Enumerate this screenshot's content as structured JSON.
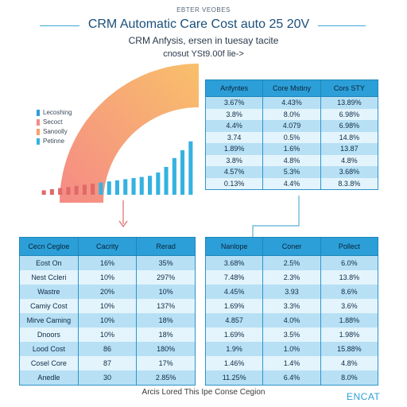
{
  "header": {
    "tag": "EBTER VEOBES",
    "title": "CRM Automatic Care Cost auto 25 20V",
    "subtitle": "CRM Anfysis, ersen in tuesay tacite",
    "subtitle2": "cnosut YSt9.00f lie->"
  },
  "colors": {
    "accent": "#2c9fd8",
    "header_fill": "#2c9fd8",
    "row_dark": "#b7e0f4",
    "row_light": "#e3f4fc",
    "arc_start": "#f58a86",
    "arc_end": "#f8c06a",
    "bar_fill": "#35b2e0",
    "connector": "#e06a6a",
    "connector_blue": "#5aaed6"
  },
  "chart_data": {
    "type": "bar",
    "title": "",
    "legend": {
      "placement": "top-left",
      "entries": [
        {
          "name": "Lecoshing",
          "color": "#2c9fd8"
        },
        {
          "name": "Secoct",
          "color": "#f58a86"
        },
        {
          "name": "Sanoolly",
          "color": "#f8a06a"
        },
        {
          "name": "Petinne",
          "color": "#35b2e0"
        }
      ]
    },
    "series": [
      {
        "name": "Petinne",
        "values": [
          4,
          5,
          6,
          7,
          8,
          9,
          10,
          11,
          12,
          13,
          14,
          15,
          16,
          17,
          20,
          25,
          33,
          40,
          48
        ]
      }
    ],
    "ylim": [
      0,
      100
    ],
    "arc": {
      "from": 5,
      "to": 100
    }
  },
  "table_top": {
    "headers": [
      "Anfyntes",
      "Core Mstiny",
      "Cors STY"
    ],
    "rows": [
      [
        "3.67%",
        "4.43%",
        "13.89%"
      ],
      [
        "3.8%",
        "8.0%",
        "6.98%"
      ],
      [
        "4.4%",
        "4.079",
        "6.98%"
      ],
      [
        "3.74",
        "0.5%",
        "14.8%"
      ],
      [
        "1.89%",
        "1.6%",
        "13.87"
      ],
      [
        "3.8%",
        "4.8%",
        "4.8%"
      ],
      [
        "4.57%",
        "5.3%",
        "3.68%"
      ],
      [
        "0.13%",
        "4.4%",
        "8.3.8%"
      ]
    ]
  },
  "table_bl": {
    "headers": [
      "Cecn Cegloe",
      "Cacrity",
      "Rerad"
    ],
    "rows": [
      [
        "Eost On",
        "16%",
        "35%"
      ],
      [
        "Nest Ccleri",
        "10%",
        "297%"
      ],
      [
        "Wastre",
        "20%",
        "10%"
      ],
      [
        "Camiy Cost",
        "10%",
        "137%"
      ],
      [
        "Mirve Caming",
        "10%",
        "18%"
      ],
      [
        "Dnoors",
        "10%",
        "18%"
      ],
      [
        "Lood Cost",
        "86",
        "180%"
      ],
      [
        "Cosel Core",
        "87",
        "17%"
      ],
      [
        "Anedle",
        "30",
        "2.85%"
      ]
    ]
  },
  "table_br": {
    "headers": [
      "Nanlope",
      "Coner",
      "Pollect"
    ],
    "rows": [
      [
        "3.68%",
        "2.5%",
        "6.0%"
      ],
      [
        "7.48%",
        "2.3%",
        "13.8%"
      ],
      [
        "4.45%",
        "3.93",
        "8.6%"
      ],
      [
        "1.69%",
        "3.3%",
        "3.6%"
      ],
      [
        "4.857",
        "4.0%",
        "1.88%"
      ],
      [
        "1.69%",
        "3.5%",
        "1.98%"
      ],
      [
        "1.9%",
        "1.0%",
        "15.88%"
      ],
      [
        "1.46%",
        "1.4%",
        "4.8%"
      ],
      [
        "11.25%",
        "6.4%",
        "8.0%"
      ]
    ]
  },
  "footer": {
    "caption": "Arcis Lored This Ipe Conse Cegion",
    "brand": "ENCAT"
  }
}
